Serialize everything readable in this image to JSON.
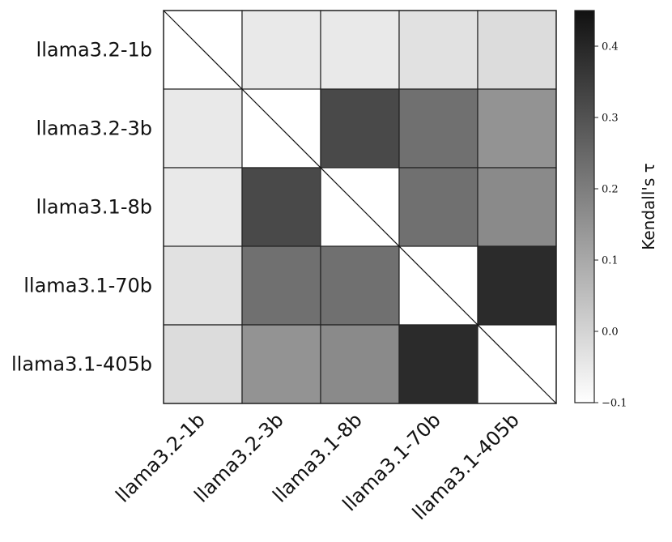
{
  "chart_data": {
    "type": "heatmap",
    "rows": [
      "llama3.2-1b",
      "llama3.2-3b",
      "llama3.1-8b",
      "llama3.1-70b",
      "llama3.1-405b"
    ],
    "cols": [
      "llama3.2-1b",
      "llama3.2-3b",
      "llama3.1-8b",
      "llama3.1-70b",
      "llama3.1-405b"
    ],
    "values": [
      [
        null,
        -0.05,
        -0.05,
        -0.03,
        -0.02
      ],
      [
        -0.05,
        null,
        0.32,
        0.23,
        0.15
      ],
      [
        -0.05,
        0.32,
        null,
        0.23,
        0.17
      ],
      [
        -0.03,
        0.23,
        0.23,
        null,
        0.39
      ],
      [
        -0.02,
        0.15,
        0.17,
        0.39,
        null
      ]
    ],
    "diagonal": "blank with diagonal line",
    "colorbar": {
      "label": "Kendall's τ",
      "vmin": -0.1,
      "vmax": 0.45,
      "ticks": [
        -0.1,
        0.0,
        0.1,
        0.2,
        0.3,
        0.4
      ],
      "tick_labels": [
        "−0.1",
        "0.0",
        "0.1",
        "0.2",
        "0.3",
        "0.4"
      ],
      "colormap": "Greys",
      "color_low": "#ffffff",
      "color_high": "#111111"
    }
  }
}
